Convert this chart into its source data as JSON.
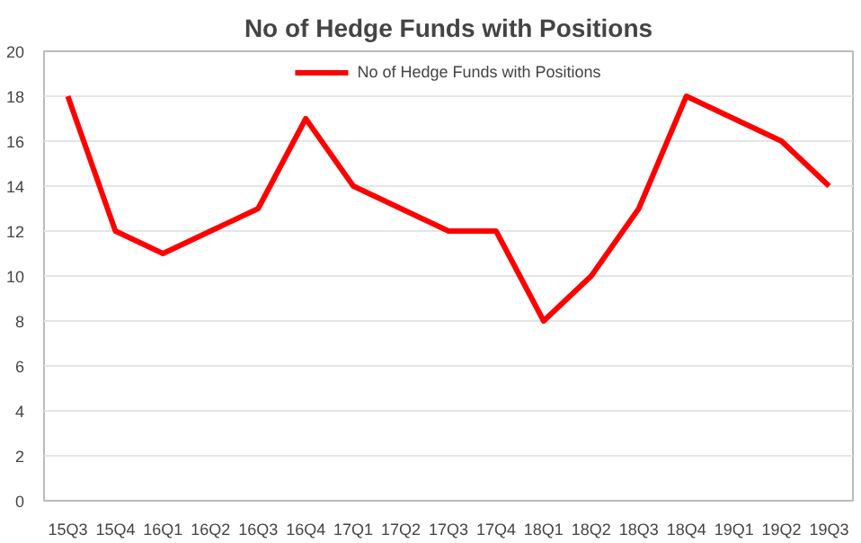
{
  "chart_data": {
    "type": "line",
    "title": "No of Hedge Funds with Positions",
    "categories": [
      "15Q3",
      "15Q4",
      "16Q1",
      "16Q2",
      "16Q3",
      "16Q4",
      "17Q1",
      "17Q2",
      "17Q3",
      "17Q4",
      "18Q1",
      "18Q2",
      "18Q3",
      "18Q4",
      "19Q1",
      "19Q2",
      "19Q3"
    ],
    "series": [
      {
        "name": "No of Hedge Funds with Positions",
        "color": "#ff0000",
        "values": [
          18,
          12,
          11,
          12,
          13,
          17,
          14,
          13,
          12,
          12,
          8,
          10,
          13,
          18,
          17,
          16,
          14
        ]
      }
    ],
    "ylim": [
      0,
      20
    ],
    "yticks": [
      0,
      2,
      4,
      6,
      8,
      10,
      12,
      14,
      16,
      18,
      20
    ],
    "grid": "y",
    "legend": "top",
    "marker": "none",
    "line_style": "solid"
  }
}
